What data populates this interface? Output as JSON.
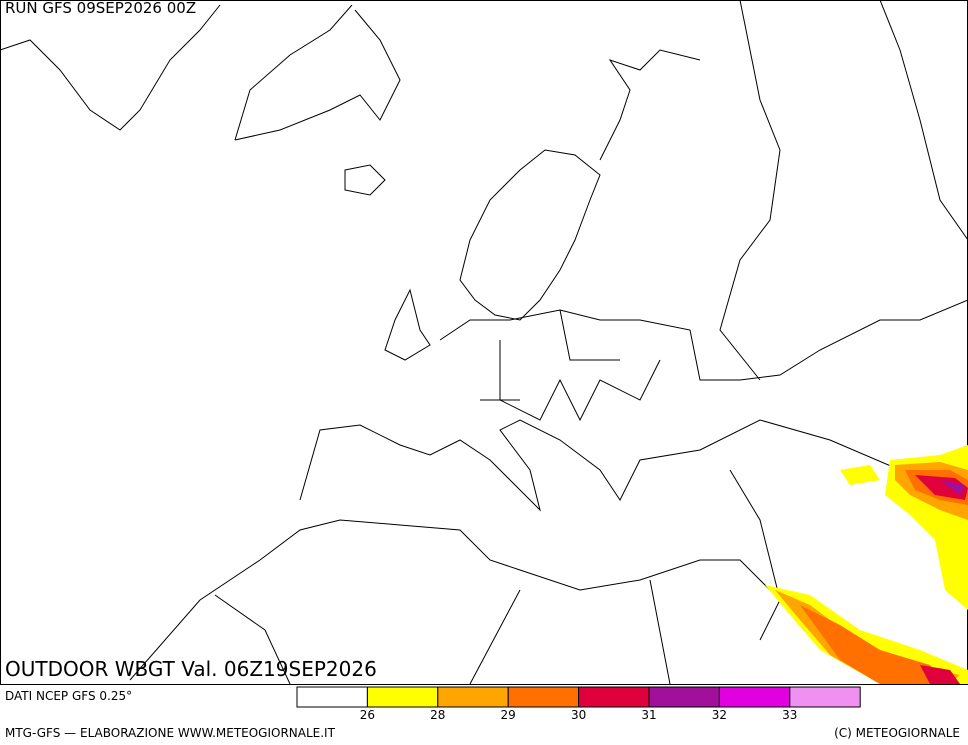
{
  "header": {
    "run": "RUN GFS 09SEP2026 00Z"
  },
  "map": {
    "title": "OUTDOOR WBGT Val. 06Z19SEP2026"
  },
  "legend": {
    "source": "DATI NCEP GFS 0.25°",
    "colors": [
      "#ffffff",
      "#ffff00",
      "#ffa500",
      "#ff7000",
      "#e0003c",
      "#a0109a",
      "#e000e0",
      "#f090f0"
    ],
    "ticks": [
      26,
      28,
      29,
      30,
      31,
      32,
      33
    ]
  },
  "footer": {
    "left": "MTG-GFS — ELABORAZIONE WWW.METEOGIORNALE.IT",
    "right": "(C) METEOGIORNALE"
  }
}
